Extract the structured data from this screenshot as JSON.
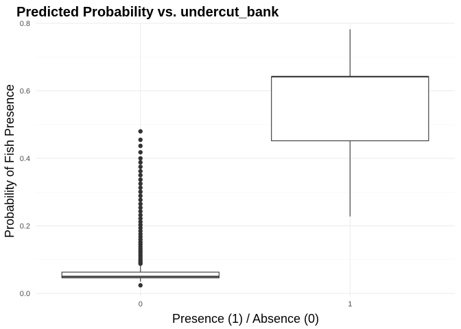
{
  "chart_data": {
    "type": "boxplot",
    "title": "Predicted Probability vs. undercut_bank",
    "xlabel": "Presence (1) / Absence (0)",
    "ylabel": "Probability of Fish Presence",
    "categories": [
      "0",
      "1"
    ],
    "ylim": [
      -0.01,
      0.8
    ],
    "yticks": [
      "0.0",
      "0.2",
      "0.4",
      "0.6",
      "0.8"
    ],
    "grid": true,
    "boxes": [
      {
        "category": "0",
        "min": 0.035,
        "q1": 0.046,
        "median": 0.05,
        "q3": 0.063,
        "max": 0.085,
        "outliers": [
          0.024,
          0.088,
          0.092,
          0.097,
          0.102,
          0.108,
          0.113,
          0.119,
          0.125,
          0.131,
          0.138,
          0.145,
          0.152,
          0.16,
          0.168,
          0.176,
          0.185,
          0.194,
          0.203,
          0.212,
          0.222,
          0.232,
          0.243,
          0.254,
          0.265,
          0.277,
          0.289,
          0.301,
          0.313,
          0.325,
          0.337,
          0.35,
          0.362,
          0.375,
          0.388,
          0.4,
          0.418,
          0.437,
          0.455,
          0.48
        ]
      },
      {
        "category": "1",
        "min": 0.228,
        "q1": 0.452,
        "median": 0.642,
        "q3": 0.642,
        "max": 0.782,
        "outliers": []
      }
    ]
  }
}
